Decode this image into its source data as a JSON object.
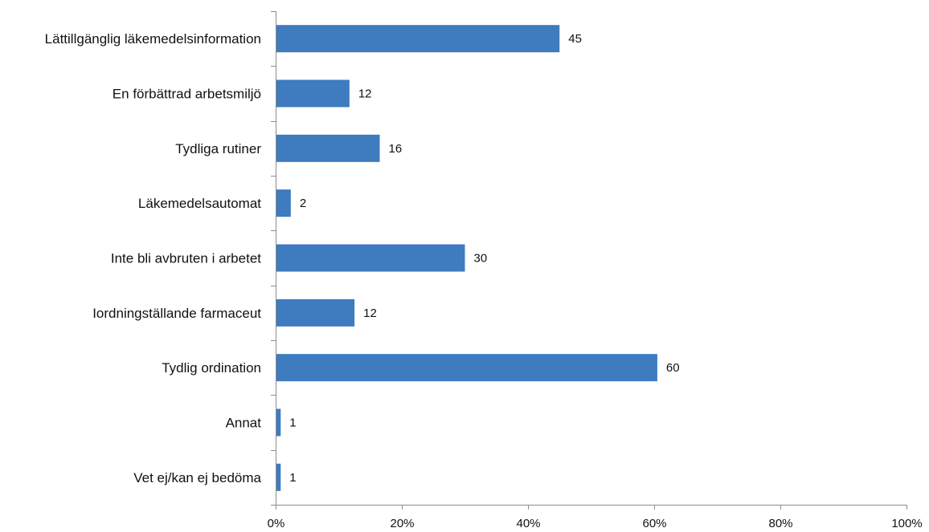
{
  "chart_data": {
    "type": "bar",
    "orientation": "horizontal",
    "categories": [
      "Lättillgänglig läkemedelsinformation",
      "En förbättrad arbetsmiljö",
      "Tydliga rutiner",
      "Läkemedelsautomat",
      "Inte bli avbruten i arbetet",
      "Iordningställande farmaceut",
      "Tydlig ordination",
      "Annat",
      "Vet ej/kan ej bedöma"
    ],
    "values": [
      45,
      12,
      16,
      2,
      30,
      12,
      60,
      1,
      1
    ],
    "bar_percent": [
      45,
      11.7,
      16.5,
      2.4,
      30,
      12.5,
      60.5,
      0.8,
      0.8
    ],
    "data_labels": [
      "45",
      "12",
      "16",
      "2",
      "30",
      "12",
      "60",
      "1",
      "1"
    ],
    "x_ticks": [
      "0%",
      "20%",
      "40%",
      "60%",
      "80%",
      "100%"
    ],
    "xlim": [
      0,
      100
    ],
    "bar_color": "#3e7bbf",
    "axis_color": "#8c8c8c",
    "grid": false,
    "legend": "none"
  }
}
